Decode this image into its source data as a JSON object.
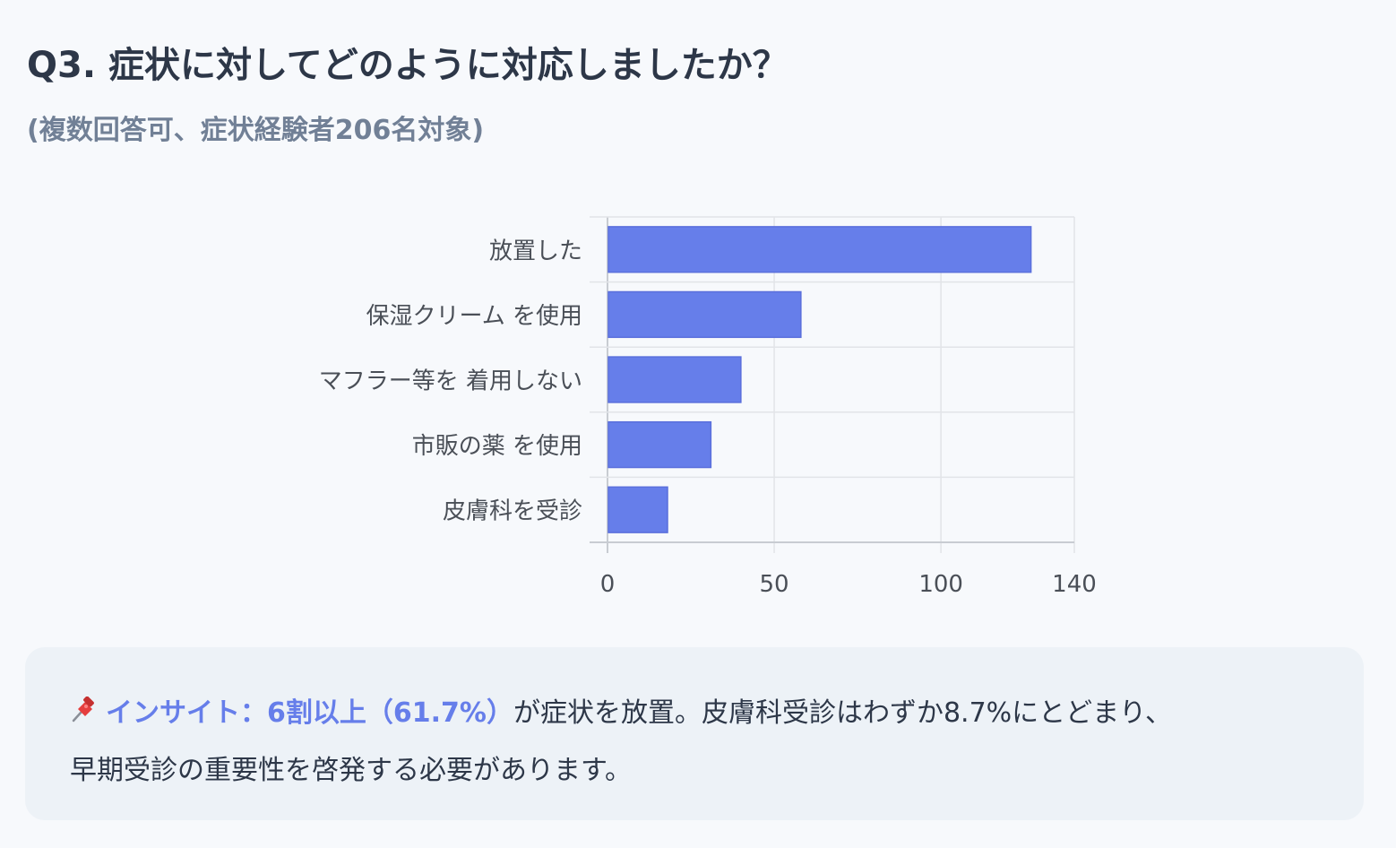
{
  "title": "Q3. 症状に対してどのように対応しましたか？",
  "subtitle": "(複数回答可、症状経験者206名対象)",
  "chart_data": {
    "type": "bar",
    "orientation": "horizontal",
    "categories": [
      "放置した",
      "保湿クリーム を使用",
      "マフラー等を 着用しない",
      "市販の薬 を使用",
      "皮膚科を受診"
    ],
    "values": [
      127,
      58,
      40,
      31,
      18
    ],
    "xlim": [
      0,
      140
    ],
    "xticks": [
      0,
      50,
      100,
      140
    ],
    "grid": true,
    "legend": "none",
    "bar_color": "#667eea"
  },
  "insight": {
    "icon": "pushpin-icon",
    "label": "インサイト：6割以上（61.7%）",
    "text_line1": "が症状を放置。皮膚科受診はわずか8.7%にとどまり、",
    "text_line2": "早期受診の重要性を啓発する必要があります。"
  }
}
